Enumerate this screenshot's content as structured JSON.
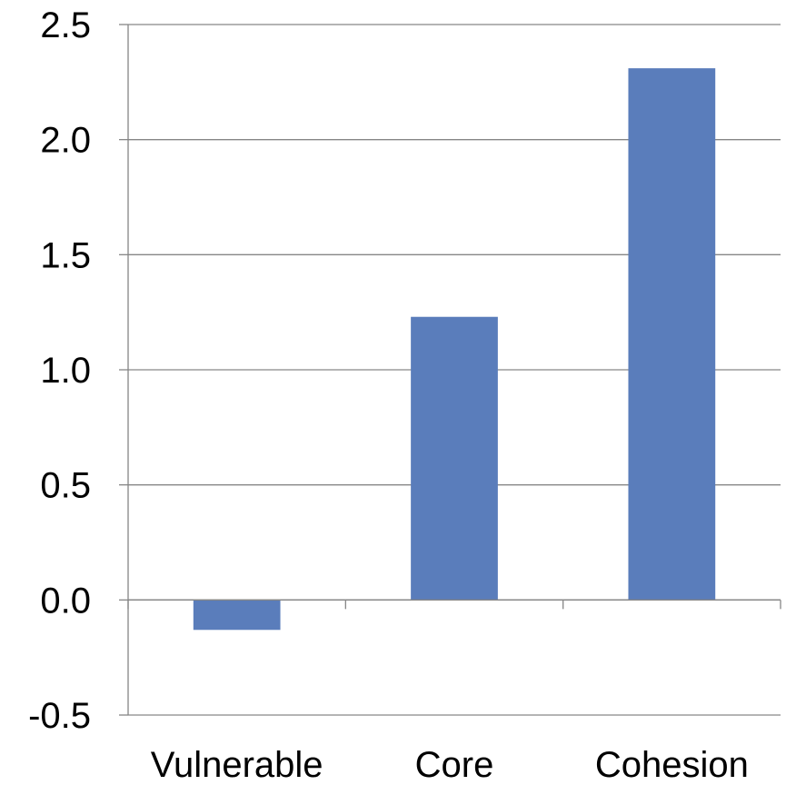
{
  "chart_data": {
    "type": "bar",
    "categories": [
      "Vulnerable",
      "Core",
      "Cohesion"
    ],
    "values": [
      -0.13,
      1.23,
      2.31
    ],
    "ylim": [
      -0.5,
      2.5
    ],
    "yticks": [
      "-0.5",
      "0.0",
      "0.5",
      "1.0",
      "1.5",
      "2.0",
      "2.5"
    ],
    "grid": true,
    "legend": "none",
    "title": "",
    "xlabel": "",
    "ylabel": ""
  },
  "colors": {
    "bar": "#5a7dbb",
    "grid": "#868686",
    "axis": "#868686"
  }
}
